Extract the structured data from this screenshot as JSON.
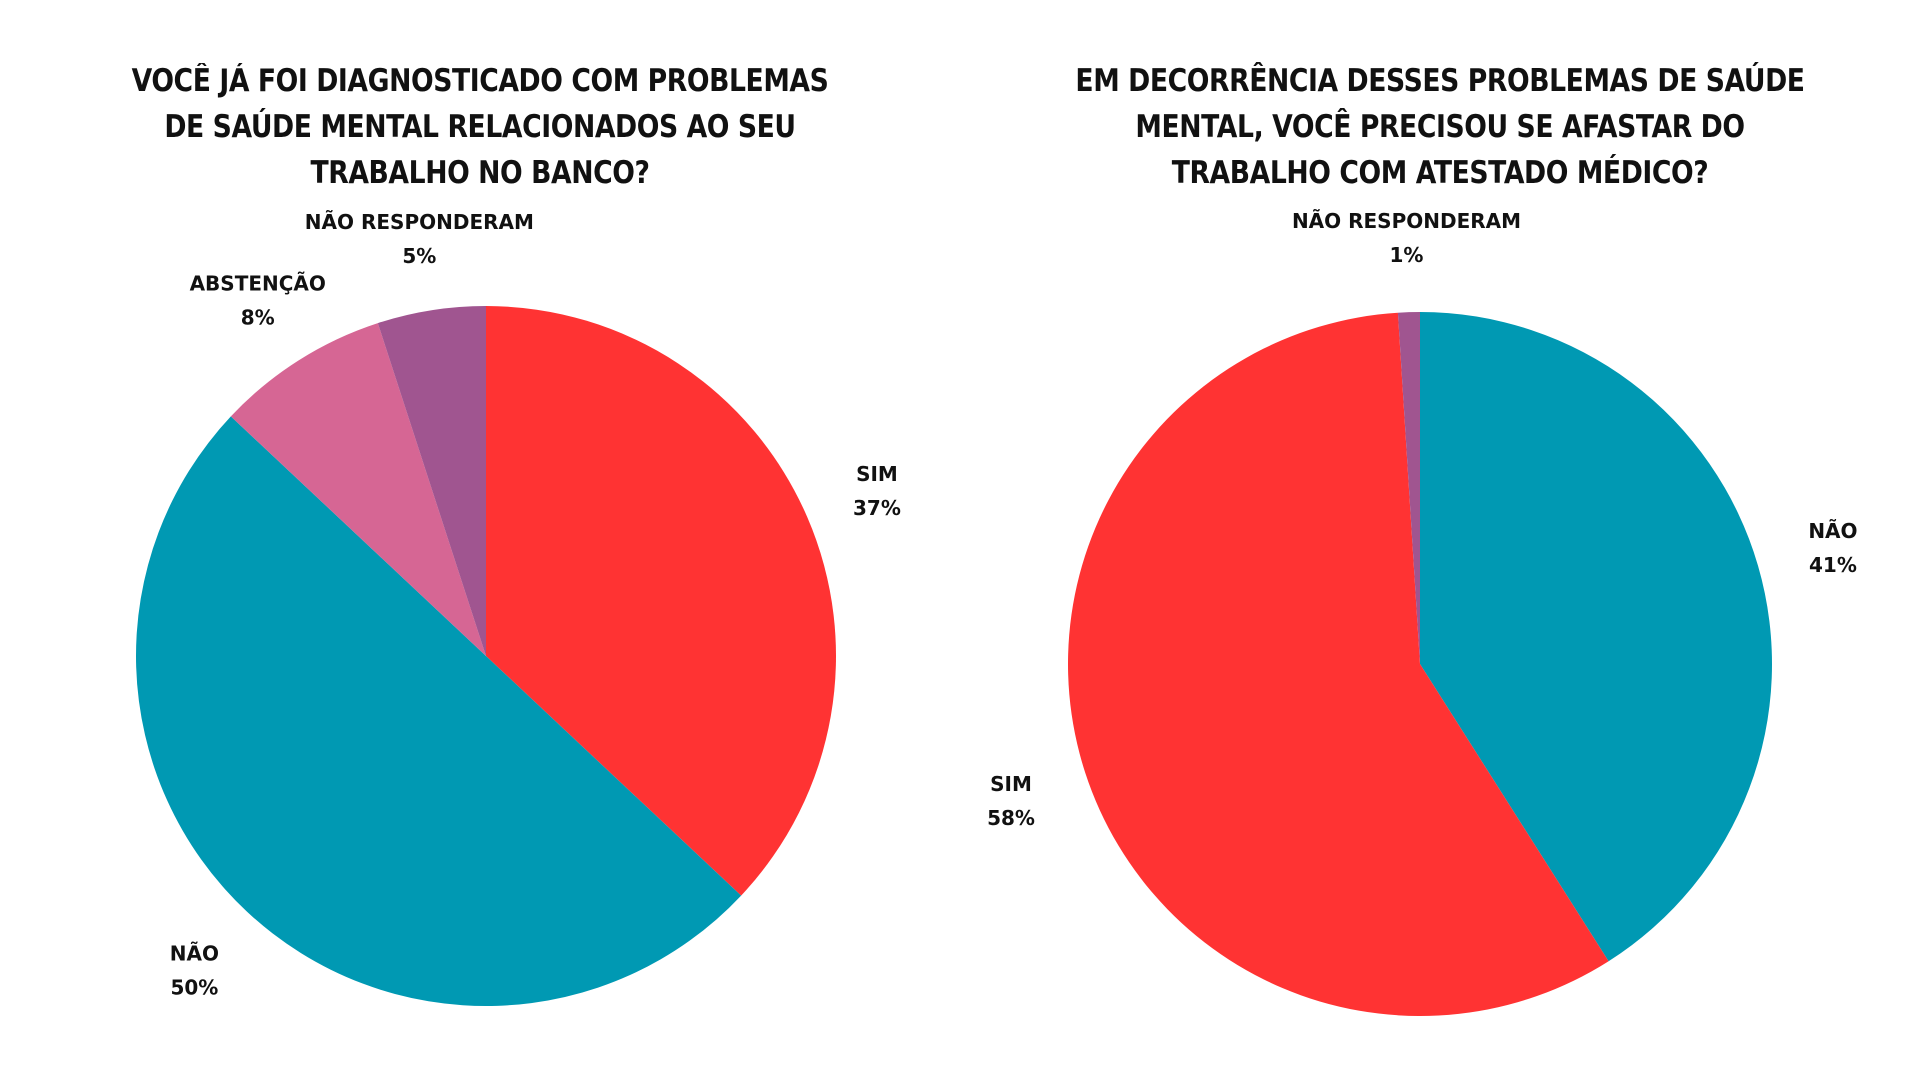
{
  "chart_data": [
    {
      "type": "pie",
      "title_lines": [
        "VOCÊ JÁ FOI DIAGNOSTICADO COM PROBLEMAS",
        "DE SAÚDE MENTAL RELACIONADOS AO SEU",
        "TRABALHO NO BANCO?"
      ],
      "slices": [
        {
          "label": "SIM",
          "value": 37,
          "value_label": "37%",
          "color": "#FF3333"
        },
        {
          "label": "NÃO",
          "value": 50,
          "value_label": "50%",
          "color": "#0099B3"
        },
        {
          "label": "ABSTENÇÃO",
          "value": 8,
          "value_label": "8%",
          "color": "#D66694"
        },
        {
          "label": "NÃO RESPONDERAM",
          "value": 5,
          "value_label": "5%",
          "color": "#A05590"
        }
      ]
    },
    {
      "type": "pie",
      "title_lines": [
        "EM DECORRÊNCIA DESSES PROBLEMAS DE SAÚDE",
        "MENTAL, VOCÊ PRECISOU SE AFASTAR DO",
        "TRABALHO COM ATESTADO MÉDICO?"
      ],
      "slices": [
        {
          "label": "NÃO",
          "value": 41,
          "value_label": "41%",
          "color": "#0099B3"
        },
        {
          "label": "SIM",
          "value": 58,
          "value_label": "58%",
          "color": "#FF3333"
        },
        {
          "label": "NÃO RESPONDERAM",
          "value": 1,
          "value_label": "1%",
          "color": "#A05590"
        }
      ]
    }
  ]
}
